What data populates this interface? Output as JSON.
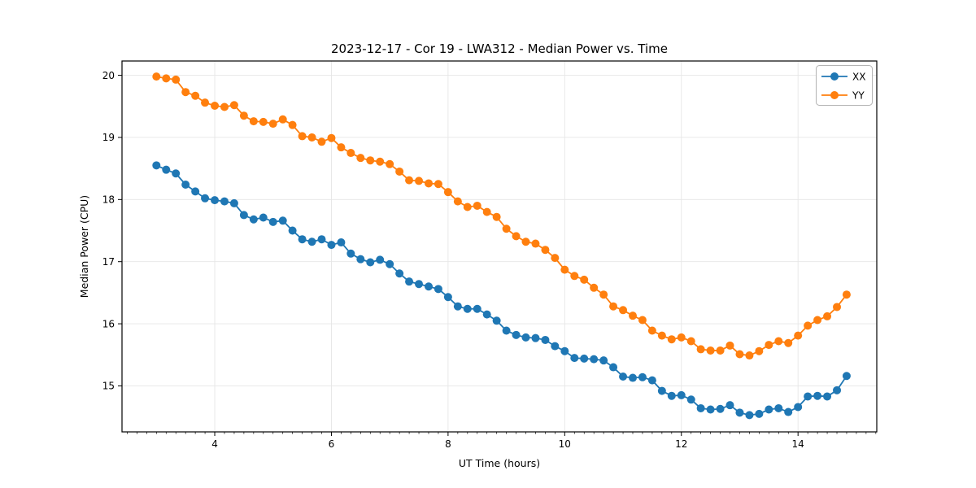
{
  "figure": {
    "background": "#ffffff",
    "plot_background": "#ffffff",
    "spine_color": "#000000",
    "grid_color": "#e6e6e6"
  },
  "chart_data": {
    "type": "line",
    "title": "2023-12-17 - Cor 19 - LWA312 - Median Power vs. Time",
    "xlabel": "UT Time (hours)",
    "ylabel": "Median Power (CPU)",
    "xlim": [
      2.41,
      15.35
    ],
    "ylim": [
      14.26,
      20.23
    ],
    "xticks": [
      4,
      6,
      8,
      10,
      12,
      14
    ],
    "yticks": [
      15,
      16,
      17,
      18,
      19,
      20
    ],
    "x_minor_step": 0.16667,
    "grid": true,
    "legend_position": "upper right",
    "marker": "circle",
    "x": [
      3.0,
      3.167,
      3.333,
      3.5,
      3.667,
      3.833,
      4.0,
      4.167,
      4.333,
      4.5,
      4.667,
      4.833,
      5.0,
      5.167,
      5.333,
      5.5,
      5.667,
      5.833,
      6.0,
      6.167,
      6.333,
      6.5,
      6.667,
      6.833,
      7.0,
      7.167,
      7.333,
      7.5,
      7.667,
      7.833,
      8.0,
      8.167,
      8.333,
      8.5,
      8.667,
      8.833,
      9.0,
      9.167,
      9.333,
      9.5,
      9.667,
      9.833,
      10.0,
      10.167,
      10.333,
      10.5,
      10.667,
      10.833,
      11.0,
      11.167,
      11.333,
      11.5,
      11.667,
      11.833,
      12.0,
      12.167,
      12.333,
      12.5,
      12.667,
      12.833,
      13.0,
      13.167,
      13.333,
      13.5,
      13.667,
      13.833,
      14.0,
      14.167,
      14.333,
      14.5,
      14.667,
      14.833
    ],
    "series": [
      {
        "name": "XX",
        "color": "#1f77b4",
        "values": [
          18.55,
          18.48,
          18.42,
          18.24,
          18.13,
          18.02,
          17.99,
          17.97,
          17.94,
          17.75,
          17.68,
          17.71,
          17.64,
          17.66,
          17.5,
          17.36,
          17.32,
          17.36,
          17.27,
          17.31,
          17.13,
          17.04,
          16.99,
          17.03,
          16.96,
          16.81,
          16.68,
          16.64,
          16.6,
          16.56,
          16.43,
          16.28,
          16.24,
          16.24,
          16.15,
          16.05,
          15.89,
          15.82,
          15.78,
          15.77,
          15.74,
          15.64,
          15.56,
          15.45,
          15.44,
          15.43,
          15.41,
          15.3,
          15.15,
          15.13,
          15.14,
          15.09,
          14.92,
          14.84,
          14.85,
          14.78,
          14.64,
          14.62,
          14.63,
          14.69,
          14.57,
          14.53,
          14.55,
          14.62,
          14.64,
          14.58,
          14.66,
          14.83,
          14.84,
          14.83,
          14.93,
          15.16
        ]
      },
      {
        "name": "YY",
        "color": "#ff7f0e",
        "values": [
          19.98,
          19.95,
          19.93,
          19.73,
          19.67,
          19.56,
          19.51,
          19.49,
          19.52,
          19.35,
          19.26,
          19.25,
          19.22,
          19.29,
          19.2,
          19.02,
          19.0,
          18.93,
          18.99,
          18.84,
          18.75,
          18.67,
          18.63,
          18.61,
          18.57,
          18.45,
          18.31,
          18.3,
          18.26,
          18.25,
          18.12,
          17.97,
          17.88,
          17.9,
          17.8,
          17.72,
          17.53,
          17.41,
          17.32,
          17.29,
          17.19,
          17.06,
          16.87,
          16.77,
          16.71,
          16.58,
          16.47,
          16.28,
          16.22,
          16.13,
          16.06,
          15.89,
          15.81,
          15.75,
          15.78,
          15.72,
          15.59,
          15.57,
          15.57,
          15.65,
          15.51,
          15.49,
          15.56,
          15.66,
          15.72,
          15.69,
          15.81,
          15.97,
          16.06,
          16.12,
          16.27,
          16.47
        ]
      }
    ]
  }
}
